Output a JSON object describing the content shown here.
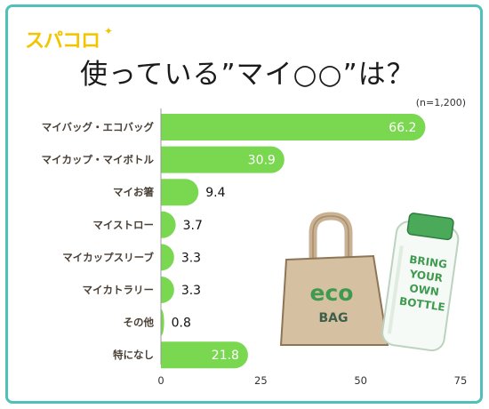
{
  "brand": {
    "logo_text": "スパコロ",
    "logo_mark": "✦"
  },
  "header": {
    "title": "使っている”マイ○○”は？",
    "note": "(n=1,200)"
  },
  "colors": {
    "bar": "#7ad850",
    "border": "#51c0b8",
    "logo": "#f3c400"
  },
  "illustration": {
    "bag_text_1": "eco",
    "bag_text_2": "BAG",
    "bottle_text": [
      "BRING",
      "YOUR",
      "OWN",
      "BOTTLE"
    ]
  },
  "chart_data": {
    "type": "bar",
    "orientation": "horizontal",
    "title": "使っている”マイ○○”は？",
    "categories": [
      "マイバッグ・エコバッグ",
      "マイカップ・マイボトル",
      "マイお箸",
      "マイストロー",
      "マイカップスリーブ",
      "マイカトラリー",
      "その他",
      "特になし"
    ],
    "values": [
      66.2,
      30.9,
      9.4,
      3.7,
      3.3,
      3.3,
      0.8,
      21.8
    ],
    "xlim": [
      0,
      75
    ],
    "xticks": [
      0,
      25,
      50,
      75
    ],
    "grid": false
  }
}
